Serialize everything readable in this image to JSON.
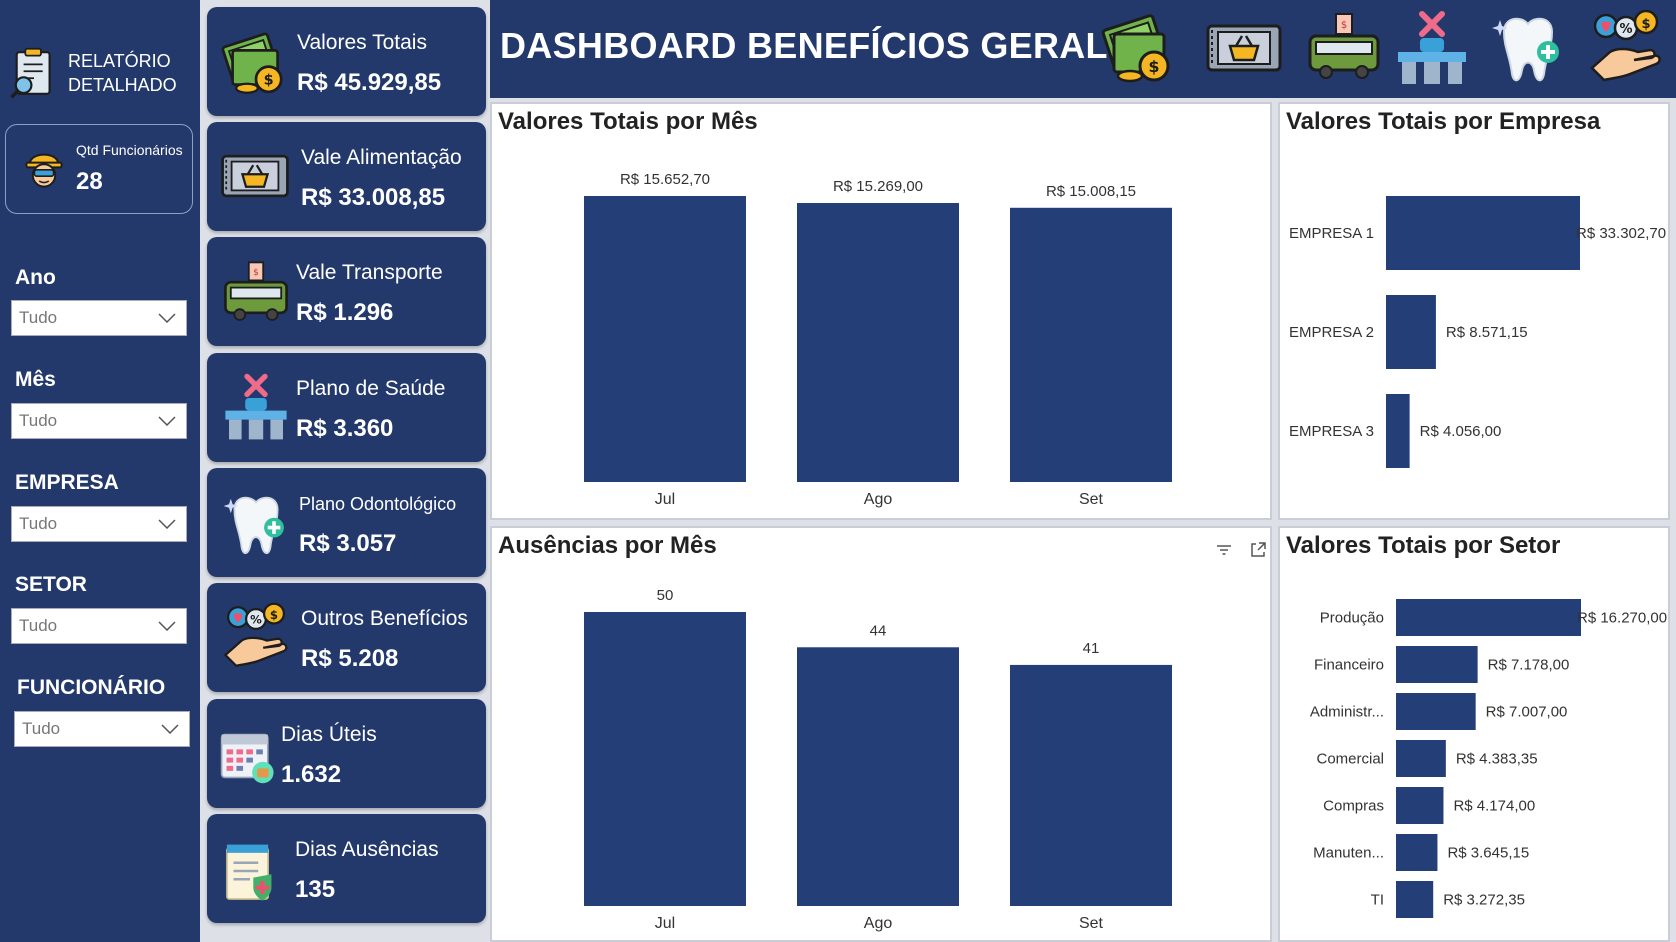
{
  "sidebar": {
    "report_label": "RELATÓRIO DETALHADO",
    "report_line1": "RELATÓRIO",
    "report_line2": "DETALHADO",
    "employees_label": "Qtd Funcionários",
    "employees_value": "28",
    "filters": [
      {
        "label": "Ano",
        "value": "Tudo"
      },
      {
        "label": "Mês",
        "value": "Tudo"
      },
      {
        "label": "EMPRESA",
        "value": "Tudo"
      },
      {
        "label": "SETOR",
        "value": "Tudo"
      },
      {
        "label": "FUNCIONÁRIO",
        "value": "Tudo"
      }
    ]
  },
  "kpis": [
    {
      "label": "Valores Totais",
      "value": "R$ 45.929,85",
      "icon": "money-coins-icon"
    },
    {
      "label": "Vale Alimentação",
      "value": "R$ 33.008,85",
      "icon": "food-ticket-icon"
    },
    {
      "label": "Vale Transporte",
      "value": "R$ 1.296",
      "icon": "bus-icon"
    },
    {
      "label": "Plano de Saúde",
      "value": "R$ 3.360",
      "icon": "hospital-icon"
    },
    {
      "label": "Plano Odontológico",
      "value": "R$ 3.057",
      "icon": "tooth-icon"
    },
    {
      "label": "Outros Benefícios",
      "value": "R$ 5.208",
      "icon": "benefits-hand-icon"
    },
    {
      "label": "Dias Úteis",
      "value": "1.632",
      "icon": "calendar-icon"
    },
    {
      "label": "Dias Ausências",
      "value": "135",
      "icon": "medical-notepad-icon"
    }
  ],
  "header": {
    "title": "DASHBOARD BENEFÍCIOS GERAL",
    "icons": [
      "money-coins-icon",
      "food-ticket-icon",
      "bus-icon",
      "hospital-icon",
      "tooth-icon",
      "benefits-hand-icon"
    ]
  },
  "colors": {
    "bar": "#243f78",
    "navy": "#23396b",
    "background": "#dde1e7"
  },
  "chart_data": [
    {
      "id": "valores-mes",
      "type": "bar",
      "title": "Valores Totais por Mês",
      "categories": [
        "Jul",
        "Ago",
        "Set"
      ],
      "values": [
        15652.7,
        15269.0,
        15008.15
      ],
      "labels": [
        "R$ 15.652,70",
        "R$ 15.269,00",
        "R$ 15.008,15"
      ],
      "ylim": [
        0,
        15652.7
      ]
    },
    {
      "id": "valores-empresa",
      "type": "bar",
      "orientation": "horizontal",
      "title": "Valores Totais por Empresa",
      "categories": [
        "EMPRESA 1",
        "EMPRESA 2",
        "EMPRESA 3"
      ],
      "values": [
        33302.7,
        8571.15,
        4056.0
      ],
      "labels": [
        "R$ 33.302,70",
        "R$ 8.571,15",
        "R$ 4.056,00"
      ]
    },
    {
      "id": "ausencias-mes",
      "type": "bar",
      "title": "Ausências por Mês",
      "categories": [
        "Jul",
        "Ago",
        "Set"
      ],
      "values": [
        50,
        44,
        41
      ],
      "labels": [
        "50",
        "44",
        "41"
      ],
      "ylim": [
        0,
        50
      ]
    },
    {
      "id": "valores-setor",
      "type": "bar",
      "orientation": "horizontal",
      "title": "Valores Totais por Setor",
      "categories": [
        "Produção",
        "Financeiro",
        "Administr...",
        "Comercial",
        "Compras",
        "Manuten...",
        "TI"
      ],
      "values": [
        16270.0,
        7178.0,
        7007.0,
        4383.35,
        4174.0,
        3645.15,
        3272.35
      ],
      "labels": [
        "R$ 16.270,00",
        "R$ 7.178,00",
        "R$ 7.007,00",
        "R$ 4.383,35",
        "R$ 4.174,00",
        "R$ 3.645,15",
        "R$ 3.272,35"
      ]
    }
  ]
}
